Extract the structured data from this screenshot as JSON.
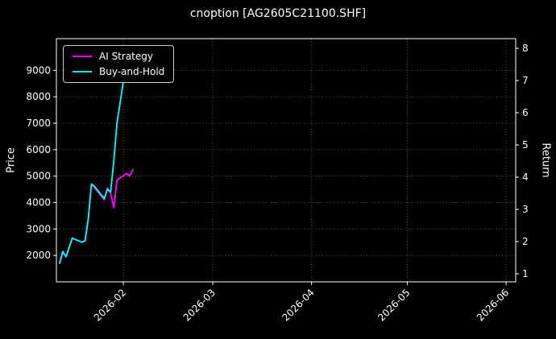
{
  "title": "cnoption [AG2605C21100.SHF]",
  "chart_data": {
    "type": "line",
    "title": "cnoption [AG2605C21100.SHF]",
    "xlabel": "",
    "ylabel_left": "Price",
    "ylabel_right": "Return",
    "legend_position": "upper-left",
    "grid": true,
    "background_color": "#000000",
    "text_color": "#ffffff",
    "grid_color": "#5a5a5a",
    "x_tick_labels": [
      "2026-02",
      "2026-03",
      "2026-04",
      "2026-05",
      "2026-06"
    ],
    "x_ticks": [
      "2026-02-01",
      "2026-03-01",
      "2026-04-01",
      "2026-05-01",
      "2026-06-01"
    ],
    "xlim": [
      "2026-01-11",
      "2026-06-04"
    ],
    "price_ticks": [
      2000,
      3000,
      4000,
      5000,
      6000,
      7000,
      8000,
      9000
    ],
    "price_ylim": [
      1000,
      10200
    ],
    "return_ticks": [
      1,
      2,
      3,
      4,
      5,
      6,
      7,
      8
    ],
    "return_ylim": [
      0.75,
      8.3
    ],
    "x": [
      "2026-01-12",
      "2026-01-13",
      "2026-01-14",
      "2026-01-15",
      "2026-01-16",
      "2026-01-19",
      "2026-01-20",
      "2026-01-21",
      "2026-01-22",
      "2026-01-23",
      "2026-01-26",
      "2026-01-27",
      "2026-01-28",
      "2026-01-29",
      "2026-01-30",
      "2026-02-02",
      "2026-02-03",
      "2026-02-04"
    ],
    "series": [
      {
        "name": "AI Strategy",
        "color": "#ff00ff",
        "axis": "price",
        "values": [
          1700,
          2100,
          1950,
          2300,
          2650,
          2500,
          2550,
          3400,
          4700,
          4550,
          4100,
          4550,
          4350,
          3800,
          4850,
          5100,
          5000,
          5250
        ]
      },
      {
        "name": "Buy-and-Hold",
        "color": "#00ffff",
        "axis": "price",
        "values": [
          1700,
          2150,
          1950,
          2300,
          2650,
          2500,
          2550,
          3400,
          4700,
          4600,
          4150,
          4500,
          4400,
          5600,
          7000,
          9400,
          9000,
          9550
        ]
      }
    ]
  }
}
